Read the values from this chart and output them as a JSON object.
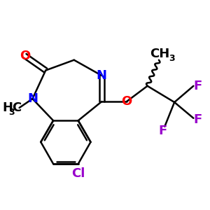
{
  "background": "#ffffff",
  "bond_color": "#000000",
  "N_color": "#0000ff",
  "O_color": "#ff0000",
  "F_color": "#9900cc",
  "Cl_color": "#9900cc",
  "bond_width": 1.8,
  "xlim": [
    0,
    6.0
  ],
  "ylim": [
    0.5,
    5.5
  ]
}
